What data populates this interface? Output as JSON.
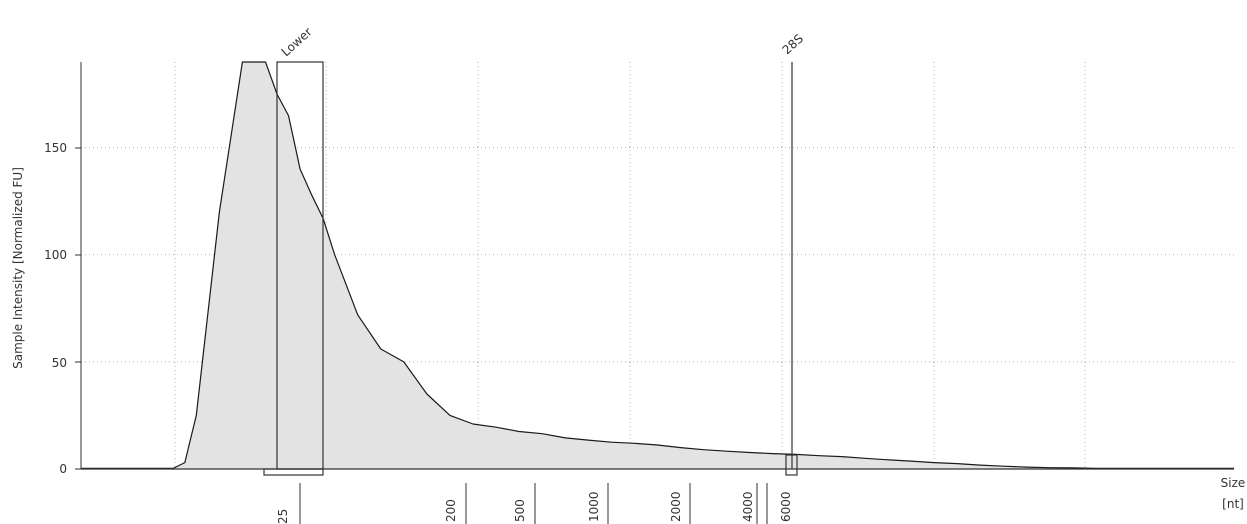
{
  "chart_data": {
    "type": "area",
    "ylabel": "Sample Intensity [Normalized FU]",
    "xlabel_line1": "Size",
    "xlabel_line2": "[nt]",
    "ylim": [
      0,
      190
    ],
    "y_ticks": [
      0,
      50,
      100,
      150
    ],
    "x_scale": "log (electropherogram, ladder-calibrated)",
    "x_ticks": [
      "25",
      "200",
      "500",
      "1000",
      "2000",
      "4000",
      "6000"
    ],
    "grid": true,
    "grid_style": "dotted",
    "fill_color": "#e3e3e3",
    "line_color": "#1a1a1a",
    "markers": [
      {
        "label": "Lower",
        "size_nt": 25
      },
      {
        "label": "28S",
        "size_nt": 6000
      }
    ],
    "series": [
      {
        "x": [
          0,
          4,
          6,
          8,
          9,
          10,
          12,
          14,
          16,
          17,
          18,
          19,
          20,
          21,
          22,
          24,
          26,
          28,
          30,
          32,
          34,
          36,
          38,
          40,
          42,
          44,
          46,
          48,
          50,
          52,
          54,
          56,
          58,
          60,
          62,
          64,
          66,
          68,
          70,
          72,
          74,
          76,
          78,
          80,
          82,
          84,
          86,
          88,
          90,
          92,
          94,
          96,
          98,
          100
        ],
        "y": [
          0.3,
          0.3,
          0.3,
          0.3,
          3,
          25,
          120,
          190,
          190,
          175,
          165,
          140,
          128,
          117,
          100,
          72,
          56,
          50,
          35,
          25,
          21,
          19.5,
          17.5,
          16.5,
          14.5,
          13.5,
          12.5,
          12,
          11.2,
          10,
          9,
          8.3,
          7.7,
          7.2,
          6.8,
          6.2,
          5.8,
          5,
          4.3,
          3.7,
          3,
          2.5,
          1.8,
          1.3,
          0.9,
          0.6,
          0.5,
          0.3,
          0.3,
          0.3,
          0.3,
          0.3,
          0.3,
          0.3
        ]
      }
    ]
  }
}
